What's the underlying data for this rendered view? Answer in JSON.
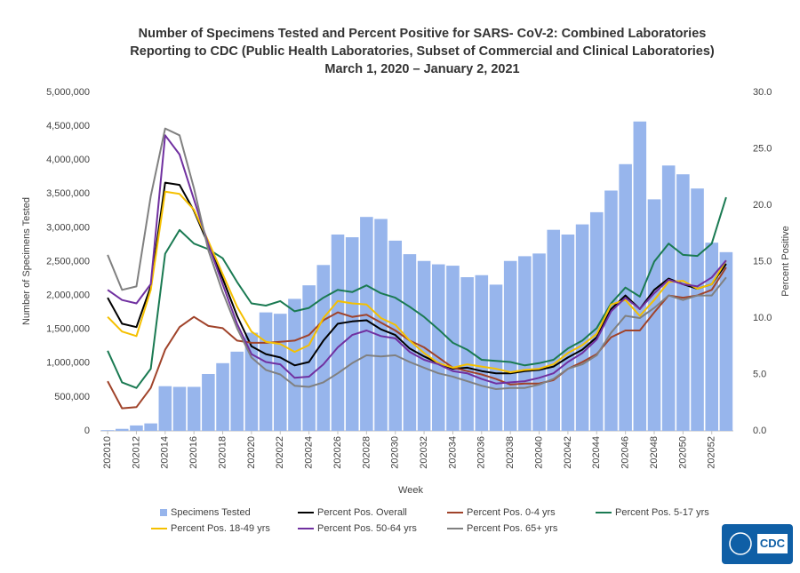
{
  "chart_data": {
    "type": "bar_line",
    "title": [
      "Number of Specimens Tested and Percent Positive for SARS- CoV-2: Combined Laboratories",
      "Reporting to CDC (Public Health Laboratories, Subset of Commercial and Clinical Laboratories)",
      "March 1, 2020 – January 2, 2021"
    ],
    "x_label": "Week",
    "y_label": "Number of Specimens Tested",
    "y2_label": "Percent Positive",
    "logo_text": "CDC",
    "categories": [
      "202010",
      null,
      "202012",
      null,
      "202014",
      null,
      "202016",
      null,
      "202018",
      null,
      "202020",
      null,
      "202022",
      null,
      "202024",
      null,
      "202026",
      null,
      "202028",
      null,
      "202030",
      null,
      "202032",
      null,
      "202034",
      null,
      "202036",
      null,
      "202038",
      null,
      "202040",
      null,
      "202042",
      null,
      "202044",
      null,
      "202046",
      null,
      "202048",
      null,
      "202050",
      null,
      "202052",
      null
    ],
    "ylim": [
      0,
      5000000
    ],
    "yticks": [
      0,
      {
        "value": 500000,
        "label": "500,000"
      },
      {
        "value": 1000000,
        "label": "1,000,000"
      },
      {
        "value": 1500000,
        "label": "1,500,000"
      },
      {
        "value": 2000000,
        "label": "2,000,000"
      },
      {
        "value": 2500000,
        "label": "2,500,000"
      },
      {
        "value": 3000000,
        "label": "3,000,000"
      },
      {
        "value": 3500000,
        "label": "3,500,000"
      },
      {
        "value": 4000000,
        "label": "4,000,000"
      },
      {
        "value": 4500000,
        "label": "4,500,000"
      },
      {
        "value": 5000000,
        "label": "5,000,000"
      }
    ],
    "y2lim": [
      0,
      30
    ],
    "y2ticks": [
      {
        "value": 0,
        "label": "0.0"
      },
      {
        "value": 5,
        "label": "5.0"
      },
      {
        "value": 10,
        "label": "10.0"
      },
      {
        "value": 15,
        "label": "15.0"
      },
      {
        "value": 20,
        "label": "20.0"
      },
      {
        "value": 25,
        "label": "25.0"
      },
      {
        "value": 30,
        "label": "30.0"
      }
    ],
    "series": [
      {
        "name": "Specimens Tested",
        "type": "bar",
        "color": "#97b5ec",
        "values": [
          10000,
          30000,
          80000,
          110000,
          660000,
          650000,
          650000,
          840000,
          1000000,
          1170000,
          1450000,
          1750000,
          1730000,
          1950000,
          2150000,
          2450000,
          2900000,
          2860000,
          3160000,
          3130000,
          2810000,
          2610000,
          2510000,
          2460000,
          2440000,
          2270000,
          2300000,
          2160000,
          2510000,
          2580000,
          2620000,
          2970000,
          2900000,
          3050000,
          3230000,
          3550000,
          3940000,
          4570000,
          3420000,
          3920000,
          3790000,
          3580000,
          2780000,
          2640000
        ]
      },
      {
        "name": "Percent Pos. Overall",
        "type": "line",
        "axis": "y2",
        "color": "#000000",
        "values": [
          11.8,
          9.5,
          9.2,
          12.8,
          22.0,
          21.8,
          19.5,
          16.5,
          13.5,
          10.2,
          7.5,
          6.8,
          6.5,
          5.8,
          6.1,
          8.0,
          9.5,
          9.7,
          9.8,
          9.0,
          8.5,
          7.3,
          6.6,
          6.0,
          5.5,
          5.6,
          5.3,
          5.1,
          5.1,
          5.3,
          5.4,
          5.7,
          6.5,
          7.2,
          8.3,
          10.8,
          12.0,
          10.8,
          12.5,
          13.5,
          13.0,
          12.6,
          13.0,
          14.8
        ]
      },
      {
        "name": "Percent Pos. 0-4 yrs",
        "type": "line",
        "axis": "y2",
        "color": "#a0432a",
        "values": [
          4.4,
          2.0,
          2.1,
          3.8,
          7.2,
          9.2,
          10.1,
          9.3,
          9.1,
          8.0,
          7.8,
          7.8,
          7.9,
          8.0,
          8.5,
          9.8,
          10.5,
          10.1,
          10.3,
          9.6,
          8.9,
          8.0,
          7.4,
          6.5,
          5.6,
          5.3,
          5.0,
          4.6,
          4.1,
          4.2,
          4.2,
          4.5,
          5.5,
          6.1,
          6.8,
          8.3,
          8.9,
          8.9,
          10.5,
          12.0,
          11.8,
          12.0,
          12.5,
          14.5
        ]
      },
      {
        "name": "Percent Pos. 5-17 yrs",
        "type": "line",
        "axis": "y2",
        "color": "#1a7a52",
        "values": [
          7.1,
          4.3,
          3.8,
          5.5,
          15.7,
          17.8,
          16.6,
          16.1,
          15.3,
          13.2,
          11.3,
          11.1,
          11.5,
          10.6,
          10.9,
          11.8,
          12.5,
          12.3,
          12.9,
          12.2,
          11.8,
          11.0,
          10.1,
          9.0,
          7.8,
          7.2,
          6.3,
          6.2,
          6.1,
          5.8,
          6.0,
          6.3,
          7.3,
          8.0,
          9.1,
          11.3,
          12.7,
          11.9,
          15.0,
          16.6,
          15.6,
          15.5,
          16.6,
          20.7
        ]
      },
      {
        "name": "Percent Pos. 18-49 yrs",
        "type": "line",
        "axis": "y2",
        "color": "#f5c000",
        "values": [
          10.1,
          8.8,
          8.4,
          12.5,
          21.2,
          21.0,
          19.6,
          16.8,
          13.9,
          11.0,
          8.8,
          7.9,
          7.7,
          7.0,
          7.6,
          10.0,
          11.5,
          11.3,
          11.2,
          10.0,
          9.4,
          8.0,
          6.9,
          6.0,
          5.6,
          5.9,
          5.7,
          5.5,
          5.2,
          5.4,
          5.5,
          5.9,
          6.9,
          7.6,
          8.6,
          11.2,
          11.6,
          10.2,
          11.6,
          13.2,
          13.3,
          12.6,
          13.0,
          15.1
        ]
      },
      {
        "name": "Percent Pos. 50-64 yrs",
        "type": "line",
        "axis": "y2",
        "color": "#7030a0",
        "values": [
          12.5,
          11.6,
          11.3,
          13.0,
          26.2,
          24.5,
          20.5,
          16.5,
          13.0,
          9.5,
          6.8,
          6.1,
          5.9,
          4.7,
          4.8,
          5.9,
          7.4,
          8.5,
          8.9,
          8.4,
          8.2,
          7.0,
          6.3,
          5.9,
          5.3,
          5.1,
          4.6,
          4.2,
          4.3,
          4.4,
          4.7,
          5.1,
          6.1,
          6.9,
          8.1,
          10.6,
          11.8,
          10.8,
          12.2,
          13.4,
          13.0,
          12.8,
          13.6,
          15.1
        ]
      },
      {
        "name": "Percent Pos. 65+ yrs",
        "type": "line",
        "axis": "y2",
        "color": "#808080",
        "values": [
          15.6,
          12.5,
          12.8,
          20.8,
          26.8,
          26.2,
          21.5,
          16.0,
          12.3,
          9.1,
          6.5,
          5.4,
          5.0,
          4.0,
          3.9,
          4.3,
          5.1,
          6.0,
          6.7,
          6.6,
          6.7,
          6.1,
          5.6,
          5.1,
          4.8,
          4.4,
          4.0,
          3.7,
          3.8,
          3.8,
          4.1,
          4.6,
          5.5,
          5.9,
          6.7,
          8.7,
          10.2,
          10.0,
          10.9,
          12.0,
          11.6,
          12.0,
          12.0,
          13.6
        ]
      }
    ]
  }
}
